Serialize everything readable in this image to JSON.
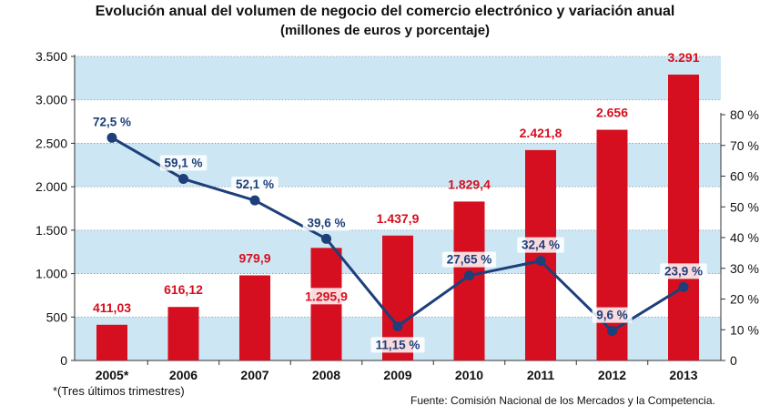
{
  "title": "Evolución anual del volumen de negocio del comercio electrónico y variación anual",
  "subtitle": "(millones de euros y porcentaje)",
  "footnote": "*(Tres últimos trimestres)",
  "source": "Fuente: Comisión Nacional de los Mercados y la Competencia.",
  "colors": {
    "bar": "#d50f1f",
    "line": "#1d3f7a",
    "band": "#cde6f4",
    "bar_label": "#d50f1f",
    "line_label": "#1d3f7a"
  },
  "chart_data": {
    "type": "bar",
    "categories": [
      "2005*",
      "2006",
      "2007",
      "2008",
      "2009",
      "2010",
      "2011",
      "2012",
      "2013"
    ],
    "series": [
      {
        "type": "bar",
        "axis": "left",
        "values": [
          411.03,
          616.12,
          979.9,
          1295.9,
          1437.9,
          1829.4,
          2421.8,
          2656,
          3291
        ],
        "labels": [
          "411,03",
          "616,12",
          "979,9",
          "1.295,9",
          "1.437,9",
          "1.829,4",
          "2.421,8",
          "2.656",
          "3.291"
        ]
      },
      {
        "type": "line",
        "axis": "right",
        "values": [
          72.5,
          59.1,
          52.1,
          39.6,
          11.15,
          27.65,
          32.4,
          9.6,
          23.9
        ],
        "labels": [
          "72,5 %",
          "59,1 %",
          "52,1 %",
          "39,6 %",
          "11,15 %",
          "27,65 %",
          "32,4 %",
          "9,6 %",
          "23,9 %"
        ]
      }
    ],
    "y_left": {
      "ylim": [
        0,
        3500
      ],
      "ticks": [
        0,
        500,
        1000,
        1500,
        2000,
        2500,
        3000,
        3500
      ],
      "tick_labels": [
        "0",
        "500",
        "1.000",
        "1.500",
        "2.000",
        "2.500",
        "3.000",
        "3.500"
      ]
    },
    "y_right": {
      "ylim": [
        0,
        80
      ],
      "ticks": [
        0,
        10,
        20,
        30,
        40,
        50,
        60,
        70,
        80
      ],
      "tick_labels": [
        "0",
        "10 %",
        "20 %",
        "30 %",
        "40 %",
        "50 %",
        "60 %",
        "70 %",
        "80 %"
      ]
    },
    "grid": true
  }
}
